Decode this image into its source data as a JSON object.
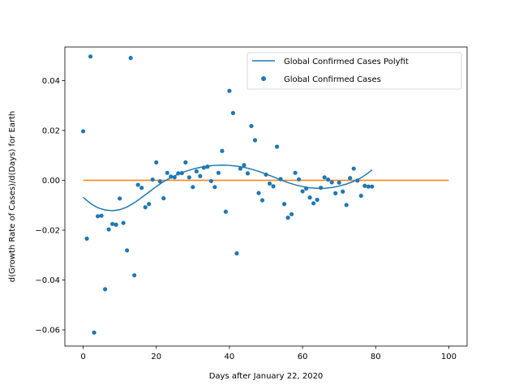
{
  "chart_data": {
    "type": "scatter",
    "xlabel": "Days after January 22, 2020",
    "ylabel": "d(Growth Rate of Cases)/d(Days) for Earth",
    "xlim": [
      -5,
      105
    ],
    "ylim": [
      -0.0665,
      0.0535
    ],
    "xticks": [
      0,
      20,
      40,
      60,
      80,
      100
    ],
    "xtick_labels": [
      "0",
      "20",
      "40",
      "60",
      "80",
      "100"
    ],
    "yticks": [
      -0.06,
      -0.04,
      -0.02,
      0.0,
      0.02,
      0.04
    ],
    "ytick_labels": [
      "−0.06",
      "−0.04",
      "−0.02",
      "0.00",
      "0.02",
      "0.04"
    ],
    "grid": false,
    "legend": {
      "position": "top-right",
      "entries": [
        "Global Confirmed Cases Polyfit",
        "Global Confirmed Cases"
      ]
    },
    "colors": {
      "series": "#1f77b4",
      "zero_line": "#ff7f0e"
    },
    "series": [
      {
        "name": "Global Confirmed Cases Polyfit",
        "type": "line",
        "x": [
          0,
          2,
          4,
          6,
          8,
          10,
          12,
          14,
          16,
          18,
          20,
          22,
          24,
          26,
          28,
          30,
          32,
          34,
          36,
          38,
          40,
          42,
          44,
          46,
          48,
          50,
          52,
          54,
          56,
          58,
          60,
          62,
          64,
          66,
          68,
          70,
          72,
          74,
          76,
          78,
          79
        ],
        "y": [
          -0.0068,
          -0.0093,
          -0.011,
          -0.0119,
          -0.0122,
          -0.0118,
          -0.0107,
          -0.009,
          -0.0069,
          -0.0047,
          -0.0025,
          -0.0005,
          0.0011,
          0.0025,
          0.0036,
          0.0045,
          0.0052,
          0.0057,
          0.006,
          0.0061,
          0.006,
          0.0057,
          0.0052,
          0.0045,
          0.0036,
          0.0025,
          0.0014,
          0.0002,
          -0.0009,
          -0.0018,
          -0.0025,
          -0.003,
          -0.0032,
          -0.0032,
          -0.0029,
          -0.0023,
          -0.0015,
          -0.0004,
          0.001,
          0.003,
          0.0042
        ]
      },
      {
        "name": "Global Confirmed Cases",
        "type": "scatter",
        "x": [
          0,
          1,
          2,
          3,
          4,
          5,
          6,
          7,
          8,
          9,
          10,
          11,
          12,
          13,
          14,
          15,
          16,
          17,
          18,
          19,
          20,
          21,
          22,
          23,
          24,
          25,
          26,
          27,
          28,
          29,
          30,
          31,
          32,
          33,
          34,
          35,
          36,
          37,
          38,
          39,
          40,
          41,
          42,
          43,
          44,
          45,
          46,
          47,
          48,
          49,
          50,
          51,
          52,
          53,
          54,
          55,
          56,
          57,
          58,
          59,
          60,
          61,
          62,
          63,
          64,
          65,
          66,
          67,
          68,
          69,
          70,
          71,
          72,
          73,
          74,
          75,
          76,
          77,
          78,
          79
        ],
        "y": [
          0.0197,
          -0.0234,
          0.0497,
          -0.0611,
          -0.0144,
          -0.0142,
          -0.0437,
          -0.0197,
          -0.0175,
          -0.0178,
          -0.0073,
          -0.0171,
          -0.0281,
          0.0491,
          -0.0381,
          -0.0018,
          -0.003,
          -0.0108,
          -0.0095,
          0.0003,
          0.0072,
          -0.0004,
          -0.0072,
          0.003,
          0.0015,
          0.0012,
          0.0028,
          0.0029,
          0.0072,
          0.0012,
          -0.0027,
          0.0036,
          0.0017,
          0.0051,
          0.0055,
          -0.0003,
          -0.0027,
          0.003,
          0.0118,
          -0.0126,
          0.0359,
          0.027,
          -0.0293,
          0.0047,
          0.0061,
          0.0028,
          0.0218,
          0.0161,
          -0.0051,
          -0.008,
          0.0023,
          -0.0013,
          -0.0024,
          0.0135,
          0.0005,
          -0.0095,
          -0.015,
          -0.0136,
          0.003,
          0.0004,
          -0.0044,
          -0.0033,
          -0.0069,
          -0.0092,
          -0.0078,
          -0.003,
          0.0012,
          0.0003,
          -0.0008,
          -0.0052,
          -0.0009,
          -0.0045,
          -0.0099,
          0.0009,
          0.0047,
          -0.0001,
          -0.0062,
          -0.0022,
          -0.0025,
          -0.0025
        ]
      },
      {
        "name": "",
        "type": "line",
        "x": [
          0,
          100
        ],
        "y": [
          0,
          0
        ]
      }
    ]
  }
}
